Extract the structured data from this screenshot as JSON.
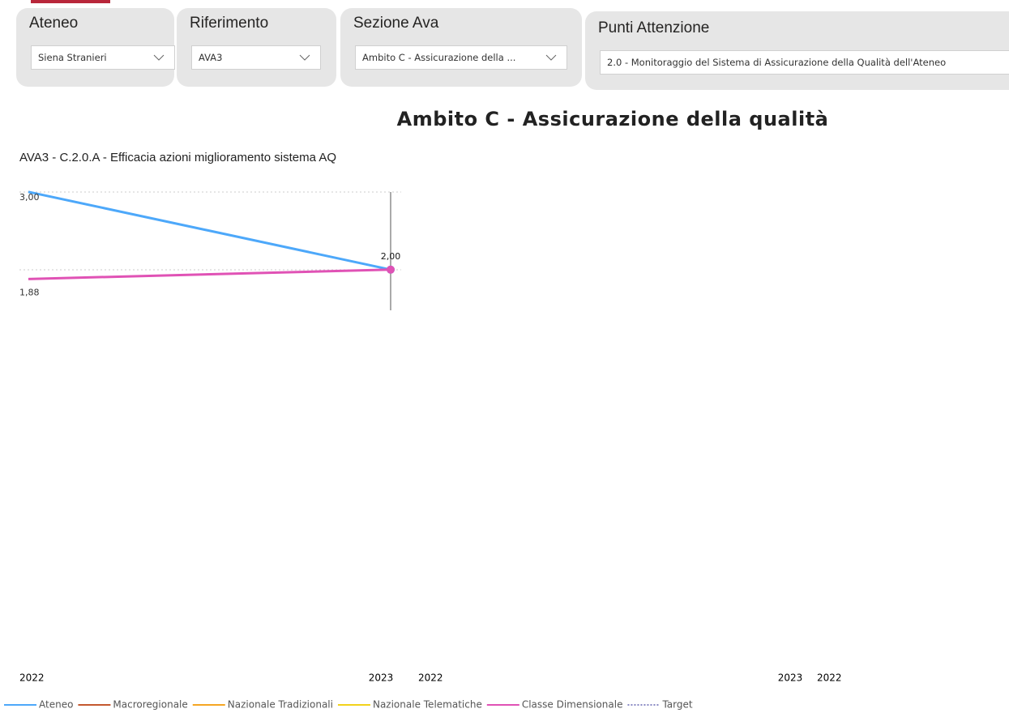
{
  "filters": [
    {
      "label": "Ateneo",
      "value": "Siena Stranieri"
    },
    {
      "label": "Riferimento",
      "value": "AVA3"
    },
    {
      "label": "Sezione Ava",
      "value": "Ambito C - Assicurazione della ..."
    },
    {
      "label": "Punti Attenzione",
      "value": "2.0 - Monitoraggio del Sistema di Assicurazione della Qualità dell'Ateneo"
    }
  ],
  "heading": "Ambito C - Assicurazione della qualità",
  "chart_data": {
    "type": "line",
    "title": "AVA3 - C.2.0.A - Efficacia azioni miglioramento sistema AQ",
    "categories": [
      "2022",
      "2023"
    ],
    "ylim": [
      1.8,
      3.05
    ],
    "series": [
      {
        "name": "Ateneo",
        "color": "#4da8fa",
        "values": [
          3.0,
          2.0
        ],
        "value_labels": [
          "3,00",
          "2,00"
        ]
      },
      {
        "name": "Macroregionale",
        "color": "#c4582f",
        "values": [
          null,
          null
        ]
      },
      {
        "name": "Nazionale Tradizionali",
        "color": "#f5a623",
        "values": [
          null,
          null
        ]
      },
      {
        "name": "Nazionale Telematiche",
        "color": "#f2d21b",
        "values": [
          null,
          null
        ]
      },
      {
        "name": "Classe Dimensionale",
        "color": "#e052b5",
        "values": [
          1.88,
          2.0
        ],
        "value_labels": [
          "1,88",
          "2,00"
        ]
      },
      {
        "name": "Target",
        "color": "#8a8ac4",
        "dash": "dotted",
        "values": [
          null,
          null
        ]
      }
    ]
  },
  "other_panel_axes": [
    [
      "2022",
      "2023"
    ],
    [
      "2022"
    ]
  ]
}
